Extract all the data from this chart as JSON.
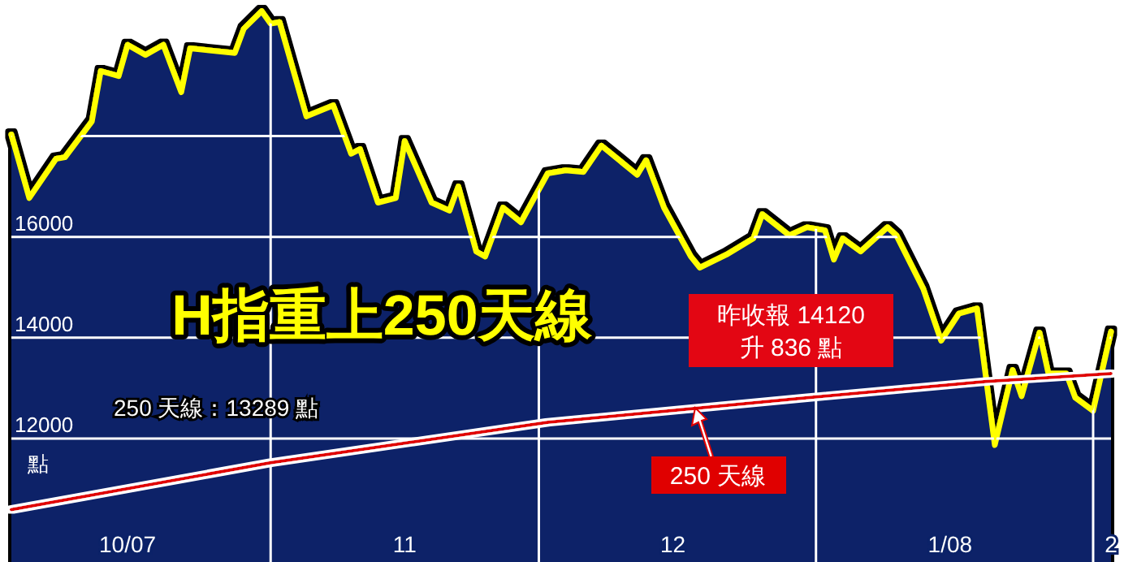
{
  "chart_data": {
    "type": "area",
    "title": "H指重上250天線",
    "ylabel": "點",
    "annotations": [
      "250 天線：13289 點",
      "昨收報 14120",
      "升 836 點"
    ],
    "xlim": [
      "2007-10-03",
      "2008-02-03"
    ],
    "ylim": [
      9550,
      20700
    ],
    "yticks": [
      12000,
      14000,
      16000,
      {
        "value": 18000,
        "label": null
      }
    ],
    "xticks": [
      {
        "value": "2007-10-16",
        "label": "10/07"
      },
      {
        "value": "2007-11-16",
        "label": "11"
      },
      {
        "value": "2007-12-16",
        "label": "12"
      },
      {
        "value": "2008-01-16",
        "label": "1/08"
      },
      {
        "value": "2008-02-03",
        "label": "2"
      }
    ],
    "grid": "y",
    "legend": "bottom",
    "ref_lines": [
      {
        "axis": "x",
        "value": "2007-11-01",
        "color": "#ffffff"
      },
      {
        "axis": "x",
        "value": "2007-12-01",
        "color": "#ffffff"
      },
      {
        "axis": "x",
        "value": "2008-01-01",
        "color": "#ffffff"
      },
      {
        "axis": "x",
        "value": "2008-02-01",
        "color": "#ffffff"
      }
    ],
    "series": [
      {
        "color": "#0b2268",
        "x": [
          "2007-10-03",
          "2007-10-05",
          "2007-10-08",
          "2007-10-09",
          "2007-10-12",
          "2007-10-13",
          "2007-10-15",
          "2007-10-16",
          "2007-10-18",
          "2007-10-20",
          "2007-10-22",
          "2007-10-23",
          "2007-10-28",
          "2007-10-29",
          "2007-10-31",
          "2007-11-01",
          "2007-11-02",
          "2007-11-05",
          "2007-11-08",
          "2007-11-10",
          "2007-11-11",
          "2007-11-13",
          "2007-11-15",
          "2007-11-16",
          "2007-11-19",
          "2007-11-21",
          "2007-11-22",
          "2007-11-24",
          "2007-11-25",
          "2007-11-27",
          "2007-11-29",
          "2007-12-02",
          "2007-12-04",
          "2007-12-06",
          "2007-12-08",
          "2007-12-12",
          "2007-12-13",
          "2007-12-15",
          "2007-12-18",
          "2007-12-19",
          "2007-12-22",
          "2007-12-25",
          "2007-12-26",
          "2007-12-29",
          "2007-12-31",
          "2008-01-02",
          "2008-01-03",
          "2008-01-04",
          "2008-01-06",
          "2008-01-09",
          "2008-01-10",
          "2008-01-13",
          "2008-01-15",
          "2008-01-17",
          "2008-01-19",
          "2008-01-21",
          "2008-01-23",
          "2008-01-24",
          "2008-01-26",
          "2008-01-27",
          "2008-01-29",
          "2008-01-30",
          "2008-02-01",
          "2008-02-03"
        ],
        "values": [
          18030,
          16770,
          17550,
          17580,
          18290,
          19290,
          19190,
          19810,
          19610,
          19810,
          18870,
          19740,
          19650,
          20130,
          20480,
          20230,
          20260,
          18390,
          18610,
          17650,
          17740,
          16680,
          16770,
          17900,
          16680,
          16520,
          17000,
          15710,
          15610,
          16580,
          16290,
          17260,
          17320,
          17290,
          17810,
          17230,
          17520,
          16580,
          15610,
          15390,
          15650,
          15970,
          16450,
          16030,
          16190,
          16130,
          15550,
          15970,
          15710,
          16190,
          16030,
          14970,
          13940,
          14480,
          14580,
          11870,
          13360,
          12840,
          14100,
          13290,
          13290,
          12810,
          12550,
          14120
        ]
      },
      {
        "name": "250 天線",
        "type": "line",
        "color": "#e00000",
        "x": [
          "2007-10-03",
          "2007-11-01",
          "2007-12-02",
          "2007-12-31",
          "2008-01-20",
          "2008-02-03"
        ],
        "values": [
          10590,
          11520,
          12320,
          12810,
          13130,
          13289
        ]
      }
    ]
  }
}
